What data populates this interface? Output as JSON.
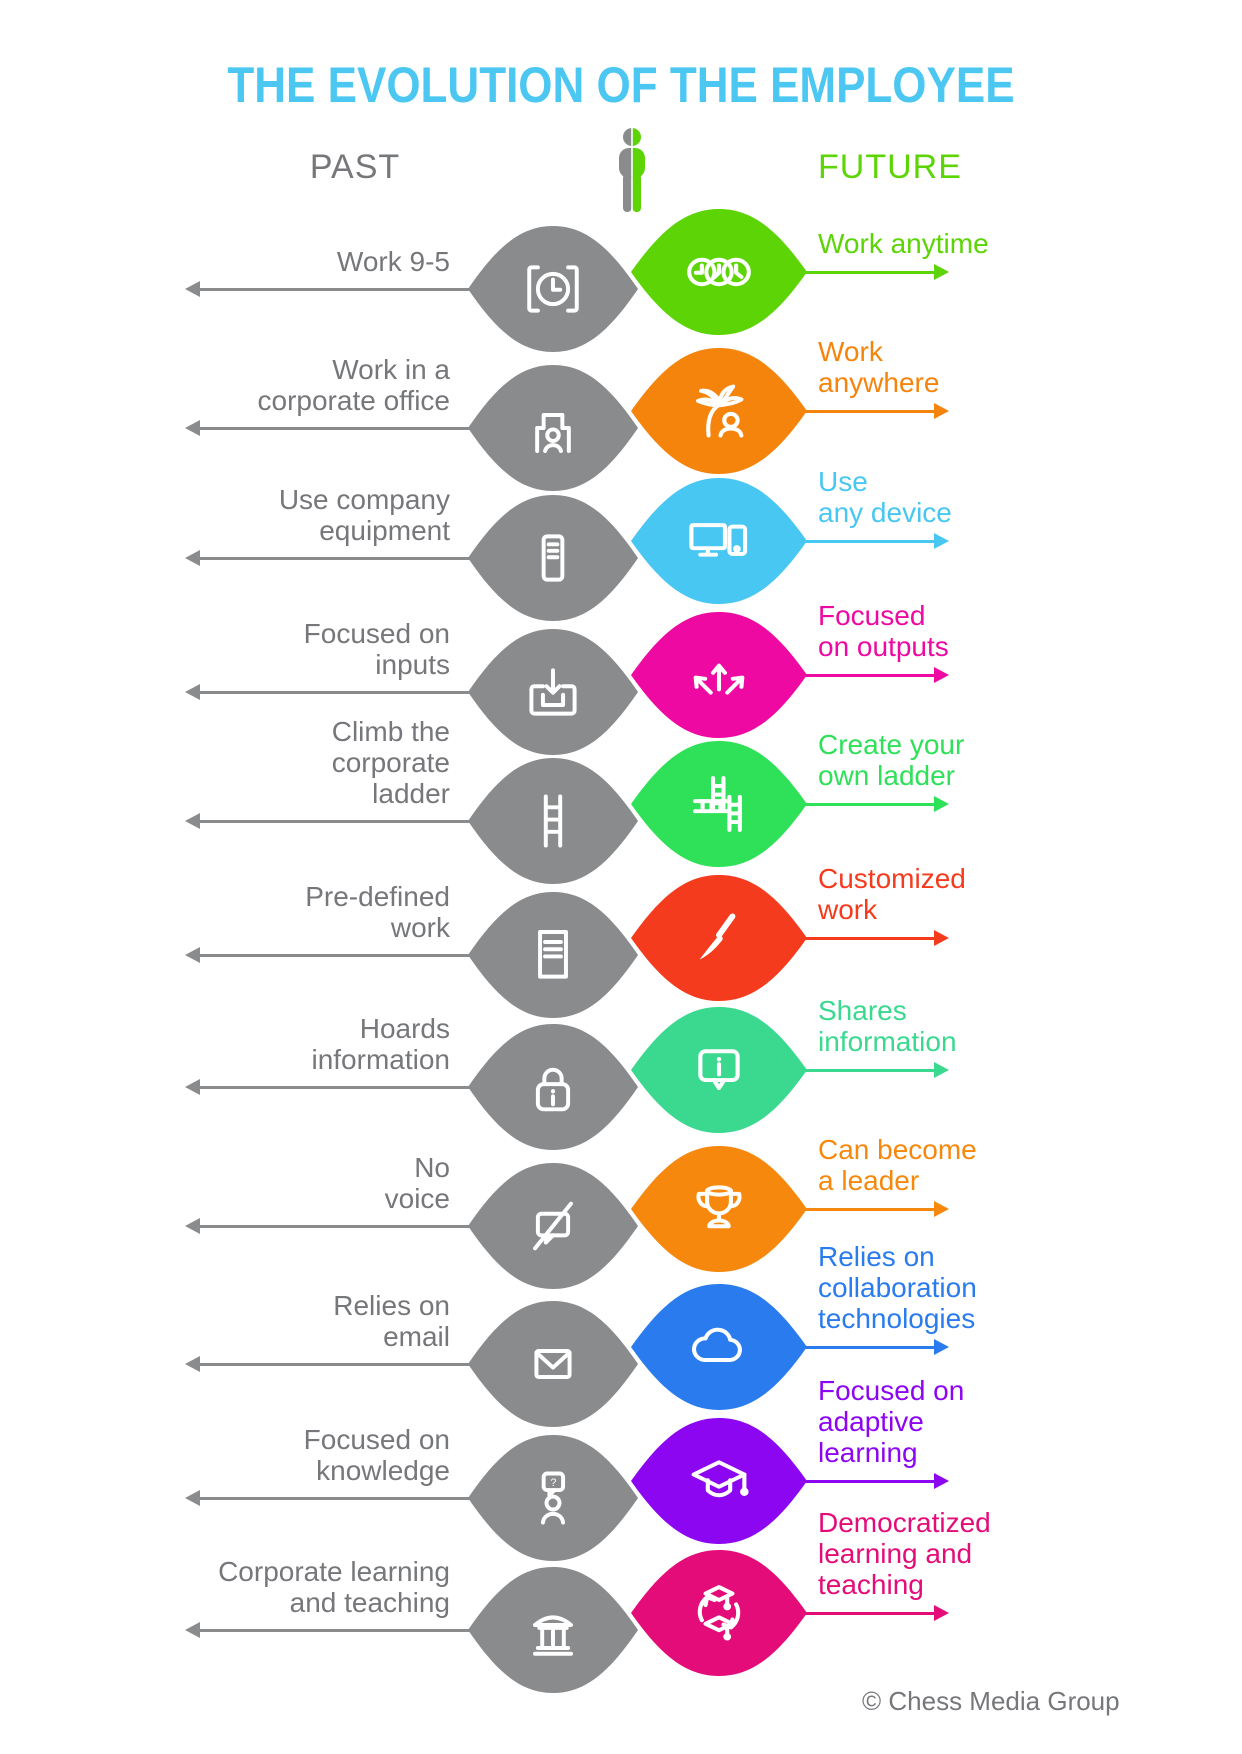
{
  "title": "THE EVOLUTION OF THE EMPLOYEE",
  "header": {
    "past_label": "PAST",
    "future_label": "FUTURE",
    "title_color": "#4BC7F1",
    "past_color": "#76777A",
    "future_color": "#5CD405",
    "person_icon": "person-split-icon"
  },
  "colors": {
    "gray_text": "#76777A",
    "gray_shape": "#8A8B8D"
  },
  "rows": [
    {
      "past_label": "Work 9-5",
      "future_label": "Work anytime",
      "past_icon": "alarm-clock-icon",
      "future_icon": "three-clocks-icon",
      "color": "#5CD405"
    },
    {
      "past_label": "Work in a\ncorporate office",
      "future_label": "Work\nanywhere",
      "past_icon": "office-worker-icon",
      "future_icon": "palm-tree-person-icon",
      "color": "#F5840D"
    },
    {
      "past_label": "Use company\nequipment",
      "future_label": "Use\nany device",
      "past_icon": "computer-tower-icon",
      "future_icon": "devices-icon",
      "color": "#48C7F2"
    },
    {
      "past_label": "Focused on\ninputs",
      "future_label": "Focused\non outputs",
      "past_icon": "inbox-arrow-icon",
      "future_icon": "arrows-out-icon",
      "color": "#ED09A2"
    },
    {
      "past_label": "Climb the\ncorporate\nladder",
      "future_label": "Create your\nown ladder",
      "past_icon": "ladder-icon",
      "future_icon": "multi-ladders-icon",
      "color": "#2FE059"
    },
    {
      "past_label": "Pre-defined\nwork",
      "future_label": "Customized\nwork",
      "past_icon": "document-icon",
      "future_icon": "paintbrush-icon",
      "color": "#F53B1E"
    },
    {
      "past_label": "Hoards\ninformation",
      "future_label": "Shares\ninformation",
      "past_icon": "padlock-info-icon",
      "future_icon": "speech-info-icon",
      "color": "#3BD98F"
    },
    {
      "past_label": "No\nvoice",
      "future_label": "Can become\na leader",
      "past_icon": "muted-speech-icon",
      "future_icon": "trophy-icon",
      "color": "#F6890D"
    },
    {
      "past_label": "Relies on\nemail",
      "future_label": "Relies on\ncollaboration\ntechnologies",
      "past_icon": "envelope-icon",
      "future_icon": "cloud-icon",
      "color": "#2A7CEE"
    },
    {
      "past_label": "Focused on\nknowledge",
      "future_label": "Focused on\nadaptive\nlearning",
      "past_icon": "person-question-icon",
      "future_icon": "graduation-cap-icon",
      "color": "#8D06F2"
    },
    {
      "past_label": "Corporate learning\nand teaching",
      "future_label": "Democratized\nlearning and\nteaching",
      "past_icon": "institution-icon",
      "future_icon": "learning-cycle-icon",
      "color": "#E30C78"
    }
  ],
  "footer": {
    "copyright": "© Chess Media Group"
  }
}
